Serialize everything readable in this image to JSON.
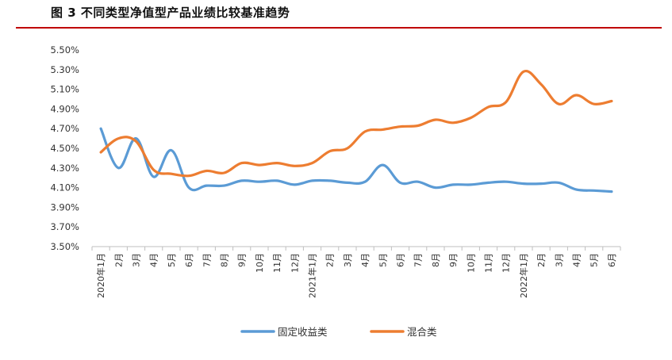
{
  "figure": {
    "title": "图 3 不同类型净值型产品业绩比较基准趋势"
  },
  "chart_data": {
    "type": "line",
    "title": "",
    "xlabel": "",
    "ylabel": "",
    "ylim": [
      3.5,
      5.5
    ],
    "y_ticks": [
      "5.50%",
      "5.30%",
      "5.10%",
      "4.90%",
      "4.70%",
      "4.50%",
      "4.30%",
      "4.10%",
      "3.90%",
      "3.70%",
      "3.50%"
    ],
    "grid": false,
    "legend_position": "bottom",
    "categories": [
      "2020年1月",
      "2月",
      "3月",
      "4月",
      "5月",
      "6月",
      "7月",
      "8月",
      "9月",
      "10月",
      "11月",
      "12月",
      "2021年1月",
      "2月",
      "3月",
      "4月",
      "5月",
      "6月",
      "7月",
      "8月",
      "9月",
      "10月",
      "11月",
      "12月",
      "2022年1月",
      "2月",
      "3月",
      "4月",
      "5月",
      "6月"
    ],
    "series": [
      {
        "name": "固定收益类",
        "color": "#5b9bd5",
        "values": [
          4.7,
          4.3,
          4.6,
          4.21,
          4.48,
          4.1,
          4.12,
          4.12,
          4.17,
          4.16,
          4.17,
          4.13,
          4.17,
          4.17,
          4.15,
          4.16,
          4.33,
          4.15,
          4.16,
          4.1,
          4.13,
          4.13,
          4.15,
          4.16,
          4.14,
          4.14,
          4.15,
          4.08,
          4.07,
          4.06
        ]
      },
      {
        "name": "混合类",
        "color": "#ed7d31",
        "values": [
          4.46,
          4.6,
          4.57,
          4.28,
          4.24,
          4.22,
          4.27,
          4.25,
          4.35,
          4.33,
          4.35,
          4.32,
          4.35,
          4.47,
          4.5,
          4.67,
          4.69,
          4.72,
          4.73,
          4.79,
          4.76,
          4.81,
          4.92,
          4.97,
          5.28,
          5.15,
          4.95,
          5.04,
          4.95,
          4.98
        ]
      }
    ]
  }
}
